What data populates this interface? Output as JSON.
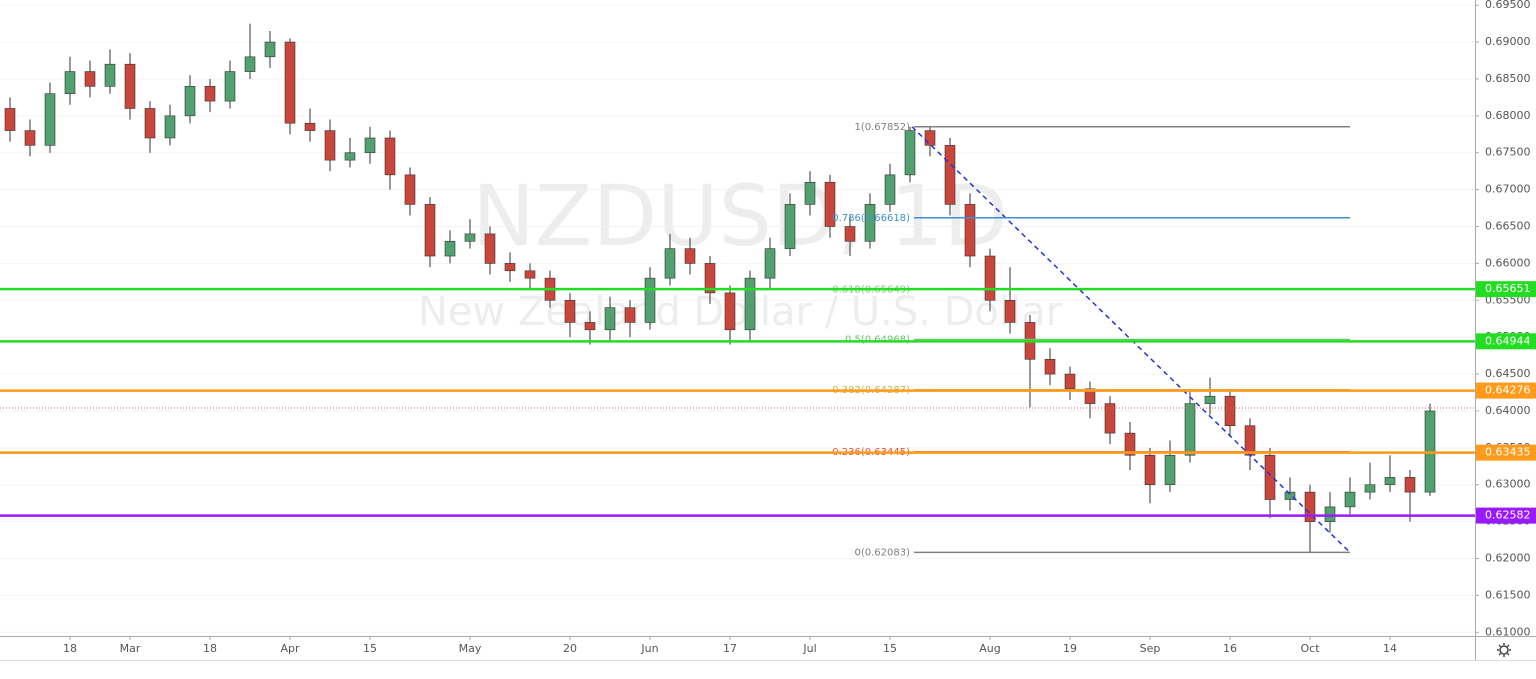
{
  "chart_data": {
    "type": "candlestick",
    "watermark": "NZDUSD, 1D",
    "subtitle": "New Zealand Dollar / U.S. Dollar",
    "categories": [
      null,
      null,
      null,
      "18",
      null,
      null,
      "Mar",
      null,
      null,
      null,
      "18",
      null,
      null,
      null,
      "Apr",
      null,
      null,
      null,
      "15",
      null,
      null,
      null,
      null,
      "May",
      null,
      null,
      null,
      null,
      "20",
      null,
      null,
      null,
      "Jun",
      null,
      null,
      null,
      "17",
      null,
      null,
      null,
      "Jul",
      null,
      null,
      null,
      "15",
      null,
      null,
      null,
      null,
      "Aug",
      null,
      null,
      null,
      "19",
      null,
      null,
      null,
      "Sep",
      null,
      null,
      null,
      "16",
      null,
      null,
      null,
      "Oct",
      null,
      null,
      null,
      "14",
      null,
      null
    ],
    "open": [
      0.681,
      0.678,
      0.676,
      0.683,
      0.686,
      0.684,
      0.687,
      0.681,
      0.677,
      0.68,
      0.684,
      0.682,
      0.686,
      0.688,
      0.69,
      0.679,
      0.678,
      0.674,
      0.675,
      0.677,
      0.672,
      0.668,
      0.661,
      0.663,
      0.664,
      0.66,
      0.659,
      0.658,
      0.655,
      0.652,
      0.651,
      0.654,
      0.652,
      0.658,
      0.662,
      0.66,
      0.656,
      0.651,
      0.658,
      0.662,
      0.668,
      0.671,
      0.665,
      0.663,
      0.668,
      0.672,
      0.678,
      0.676,
      0.668,
      0.661,
      0.655,
      0.652,
      0.647,
      0.645,
      0.643,
      0.641,
      0.637,
      0.634,
      0.63,
      0.634,
      0.641,
      0.642,
      0.638,
      0.634,
      0.628,
      0.629,
      0.625,
      0.627,
      0.629,
      0.63,
      0.631,
      0.629
    ],
    "high": [
      0.6825,
      0.6795,
      0.6845,
      0.688,
      0.6875,
      0.689,
      0.6885,
      0.682,
      0.6815,
      0.6855,
      0.685,
      0.6875,
      0.6925,
      0.6915,
      0.6905,
      0.681,
      0.6795,
      0.677,
      0.6785,
      0.678,
      0.673,
      0.669,
      0.6645,
      0.666,
      0.665,
      0.6615,
      0.66,
      0.659,
      0.656,
      0.6535,
      0.6555,
      0.655,
      0.6595,
      0.664,
      0.6635,
      0.661,
      0.657,
      0.659,
      0.6635,
      0.6695,
      0.6725,
      0.672,
      0.6665,
      0.6695,
      0.6735,
      0.6785,
      0.6785,
      0.677,
      0.6695,
      0.662,
      0.6595,
      0.653,
      0.6485,
      0.646,
      0.644,
      0.642,
      0.6385,
      0.635,
      0.636,
      0.643,
      0.6445,
      0.643,
      0.639,
      0.635,
      0.631,
      0.63,
      0.629,
      0.631,
      0.633,
      0.634,
      0.632,
      0.641
    ],
    "low": [
      0.6765,
      0.6745,
      0.675,
      0.6815,
      0.6825,
      0.683,
      0.6795,
      0.675,
      0.676,
      0.679,
      0.6805,
      0.681,
      0.685,
      0.6865,
      0.6775,
      0.6765,
      0.6725,
      0.673,
      0.6735,
      0.67,
      0.6665,
      0.6595,
      0.66,
      0.662,
      0.6585,
      0.6575,
      0.6565,
      0.654,
      0.65,
      0.649,
      0.6495,
      0.65,
      0.651,
      0.657,
      0.6585,
      0.6545,
      0.649,
      0.6495,
      0.6565,
      0.661,
      0.6665,
      0.6635,
      0.661,
      0.662,
      0.667,
      0.671,
      0.6745,
      0.6665,
      0.6595,
      0.6535,
      0.6505,
      0.6405,
      0.6435,
      0.6415,
      0.639,
      0.6355,
      0.632,
      0.6275,
      0.629,
      0.633,
      0.6395,
      0.6365,
      0.632,
      0.6255,
      0.6265,
      0.6208,
      0.6235,
      0.626,
      0.628,
      0.629,
      0.625,
      0.6285
    ],
    "close": [
      0.678,
      0.676,
      0.683,
      0.686,
      0.684,
      0.687,
      0.681,
      0.677,
      0.68,
      0.684,
      0.682,
      0.686,
      0.688,
      0.69,
      0.679,
      0.678,
      0.674,
      0.675,
      0.677,
      0.672,
      0.668,
      0.661,
      0.663,
      0.664,
      0.66,
      0.659,
      0.658,
      0.655,
      0.652,
      0.651,
      0.654,
      0.652,
      0.658,
      0.662,
      0.66,
      0.656,
      0.651,
      0.658,
      0.662,
      0.668,
      0.671,
      0.665,
      0.663,
      0.668,
      0.672,
      0.678,
      0.676,
      0.668,
      0.661,
      0.655,
      0.652,
      0.647,
      0.645,
      0.643,
      0.641,
      0.637,
      0.634,
      0.63,
      0.634,
      0.641,
      0.642,
      0.638,
      0.634,
      0.628,
      0.629,
      0.625,
      0.627,
      0.629,
      0.63,
      0.631,
      0.629,
      0.64
    ],
    "up_color": "#53a06f",
    "down_color": "#c9463d",
    "last_price": 0.6404,
    "ylim": [
      0.6095,
      0.6957
    ],
    "yticks": [
      {
        "value": 0.61,
        "label": "0.61000"
      },
      {
        "value": 0.615,
        "label": "0.61500"
      },
      {
        "value": 0.62,
        "label": "0.62000"
      },
      {
        "value": 0.625,
        "label": "0.62500"
      },
      {
        "value": 0.63,
        "label": "0.63000"
      },
      {
        "value": 0.635,
        "label": "0.63500"
      },
      {
        "value": 0.64,
        "label": "0.64000"
      },
      {
        "value": 0.645,
        "label": "0.64500"
      },
      {
        "value": 0.65,
        "label": "0.65000"
      },
      {
        "value": 0.655,
        "label": "0.65500"
      },
      {
        "value": 0.66,
        "label": "0.66000"
      },
      {
        "value": 0.665,
        "label": "0.66500"
      },
      {
        "value": 0.67,
        "label": "0.67000"
      },
      {
        "value": 0.675,
        "label": "0.67500"
      },
      {
        "value": 0.68,
        "label": "0.68000"
      },
      {
        "value": 0.685,
        "label": "0.68500"
      },
      {
        "value": 0.69,
        "label": "0.69000"
      },
      {
        "value": 0.695,
        "label": "0.69500"
      }
    ],
    "grid": true,
    "levels": [
      {
        "value": 0.65651,
        "color": "#22dd22"
      },
      {
        "value": 0.64944,
        "color": "#22dd22"
      },
      {
        "value": 0.64276,
        "color": "#ff9a1a"
      },
      {
        "value": 0.63435,
        "color": "#ff9a1a"
      },
      {
        "value": 0.62582,
        "color": "#9a1aff"
      }
    ],
    "fib": [
      {
        "label": "1(0.67852)",
        "value": 0.67852,
        "color": "#808080"
      },
      {
        "label": "0.786(0.66618)",
        "value": 0.66618,
        "color": "#3d8ed6"
      },
      {
        "label": "0.618(0.65649)",
        "value": 0.65649,
        "color": "#7fc97f"
      },
      {
        "label": "0.5(0.64968)",
        "value": 0.64968,
        "color": "#6cc46c"
      },
      {
        "label": "0.382(0.64287)",
        "value": 0.64287,
        "color": "#c8b34a"
      },
      {
        "label": "0.236(0.63445)",
        "value": 0.63445,
        "color": "#e8553a"
      },
      {
        "label": "0(0.62083)",
        "value": 0.62083,
        "color": "#808080"
      }
    ]
  }
}
